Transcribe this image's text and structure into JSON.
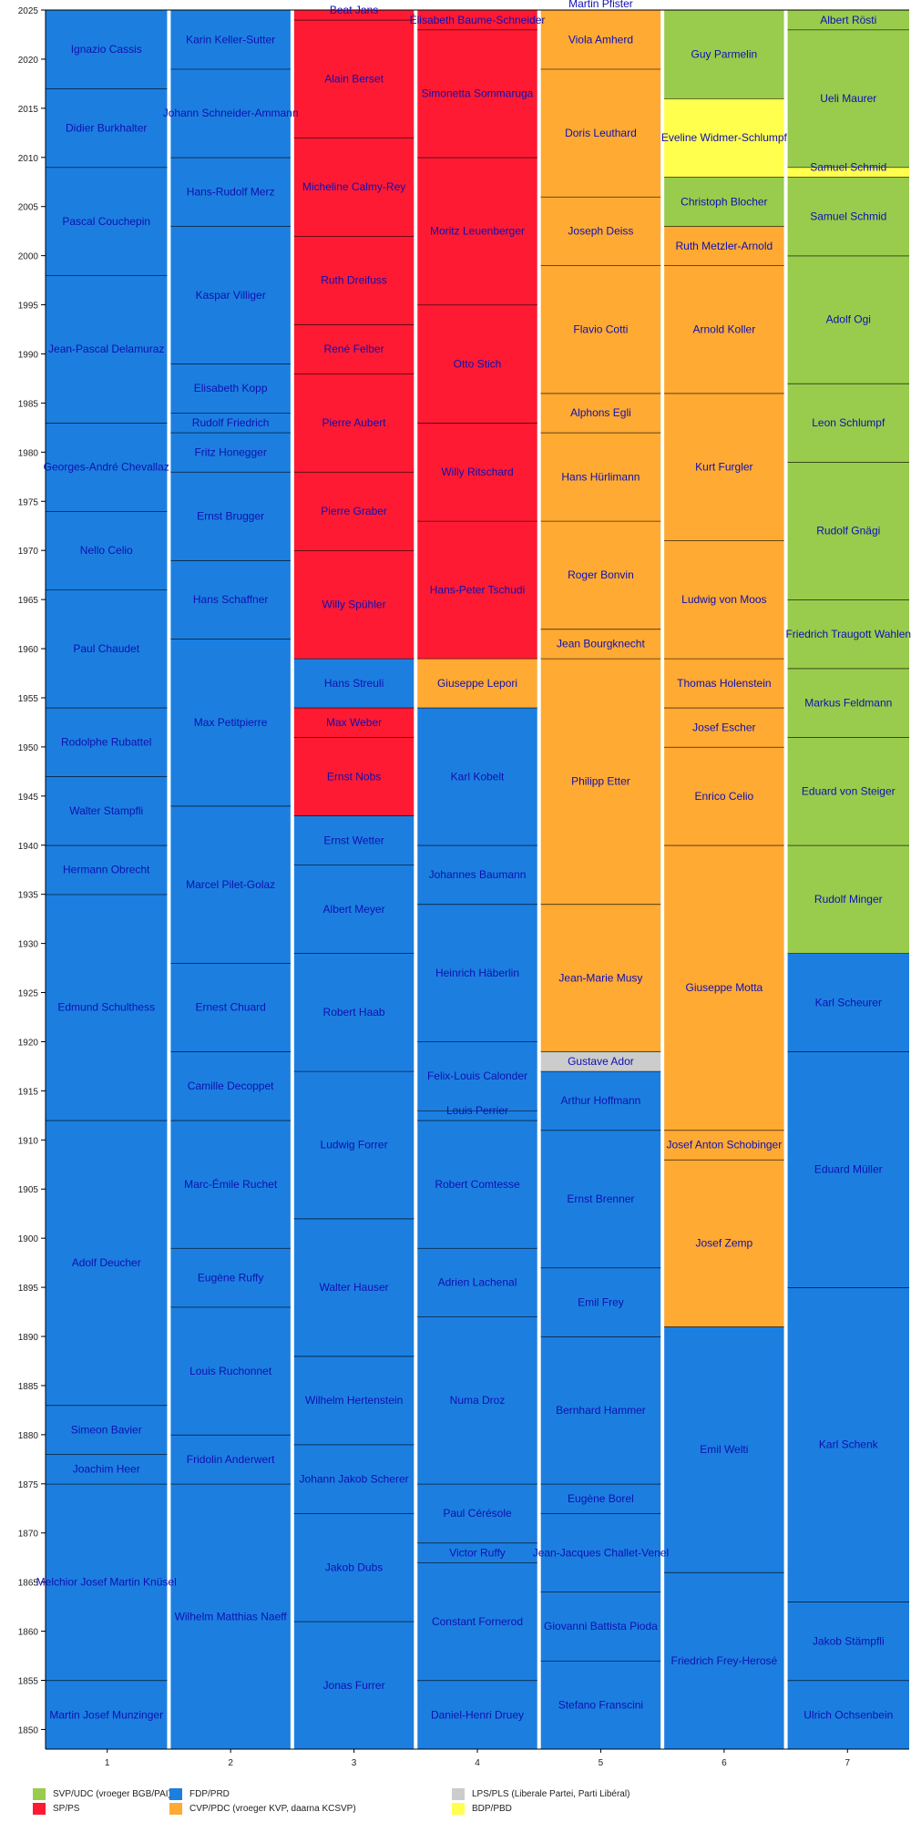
{
  "chart_data": {
    "type": "bar",
    "subtype": "stacked-timeline",
    "title": "",
    "xlabel": "",
    "ylabel": "",
    "ylim": [
      1848,
      2025
    ],
    "yticks": [
      1850,
      1855,
      1860,
      1865,
      1870,
      1875,
      1880,
      1885,
      1890,
      1895,
      1900,
      1905,
      1910,
      1915,
      1920,
      1925,
      1930,
      1935,
      1940,
      1945,
      1950,
      1955,
      1960,
      1965,
      1970,
      1975,
      1980,
      1985,
      1990,
      1995,
      2000,
      2005,
      2010,
      2015,
      2020,
      2025
    ],
    "categories": [
      "1",
      "2",
      "3",
      "4",
      "5",
      "6",
      "7"
    ],
    "parties": {
      "SVP": {
        "label": "SVP/UDC (vroeger BGB/PAI)",
        "color": "#99cc4c"
      },
      "SP": {
        "label": "SP/PS",
        "color": "#ff1a33"
      },
      "FDP": {
        "label": "FDP/PRD",
        "color": "#1c7fe0"
      },
      "CVP": {
        "label": "CVP/PDC (vroeger KVP, daarna KCSVP)",
        "color": "#ffaa33"
      },
      "LPS": {
        "label": "LPS/PLS (Liberale Partei, Parti Libéral)",
        "color": "#cccccc"
      },
      "BDP": {
        "label": "BDP/PBD",
        "color": "#ffff4d"
      }
    },
    "legend_order": [
      "SVP",
      "SP",
      "FDP",
      "CVP",
      "LPS",
      "BDP"
    ],
    "label_color": "#1010b0",
    "seats": [
      [
        {
          "name": "Martin Josef Munzinger",
          "from": 1848,
          "to": 1855,
          "party": "FDP"
        },
        {
          "name": "Melchior Josef Martin Knüsel",
          "from": 1855,
          "to": 1875,
          "party": "FDP"
        },
        {
          "name": "Joachim Heer",
          "from": 1875,
          "to": 1878,
          "party": "FDP"
        },
        {
          "name": "Simeon Bavier",
          "from": 1878,
          "to": 1883,
          "party": "FDP"
        },
        {
          "name": "Adolf Deucher",
          "from": 1883,
          "to": 1912,
          "party": "FDP"
        },
        {
          "name": "Edmund Schulthess",
          "from": 1912,
          "to": 1935,
          "party": "FDP"
        },
        {
          "name": "Hermann Obrecht",
          "from": 1935,
          "to": 1940,
          "party": "FDP"
        },
        {
          "name": "Walter Stampfli",
          "from": 1940,
          "to": 1947,
          "party": "FDP"
        },
        {
          "name": "Rodolphe Rubattel",
          "from": 1947,
          "to": 1954,
          "party": "FDP"
        },
        {
          "name": "Paul Chaudet",
          "from": 1954,
          "to": 1966,
          "party": "FDP"
        },
        {
          "name": "Nello Celio",
          "from": 1966,
          "to": 1974,
          "party": "FDP"
        },
        {
          "name": "Georges-André Chevallaz",
          "from": 1974,
          "to": 1983,
          "party": "FDP"
        },
        {
          "name": "Jean-Pascal Delamuraz",
          "from": 1983,
          "to": 1998,
          "party": "FDP"
        },
        {
          "name": "Pascal Couchepin",
          "from": 1998,
          "to": 2009,
          "party": "FDP"
        },
        {
          "name": "Didier Burkhalter",
          "from": 2009,
          "to": 2017,
          "party": "FDP"
        },
        {
          "name": "Ignazio Cassis",
          "from": 2017,
          "to": 2025,
          "party": "FDP"
        }
      ],
      [
        {
          "name": "Wilhelm Matthias Naeff",
          "from": 1848,
          "to": 1875,
          "party": "FDP"
        },
        {
          "name": "Fridolin Anderwert",
          "from": 1875,
          "to": 1880,
          "party": "FDP"
        },
        {
          "name": "Louis Ruchonnet",
          "from": 1880,
          "to": 1893,
          "party": "FDP"
        },
        {
          "name": "Eugène Ruffy",
          "from": 1893,
          "to": 1899,
          "party": "FDP"
        },
        {
          "name": "Marc-Émile Ruchet",
          "from": 1899,
          "to": 1912,
          "party": "FDP"
        },
        {
          "name": "Camille Decoppet",
          "from": 1912,
          "to": 1919,
          "party": "FDP"
        },
        {
          "name": "Ernest Chuard",
          "from": 1919,
          "to": 1928,
          "party": "FDP"
        },
        {
          "name": "Marcel Pilet-Golaz",
          "from": 1928,
          "to": 1944,
          "party": "FDP"
        },
        {
          "name": "Max Petitpierre",
          "from": 1944,
          "to": 1961,
          "party": "FDP"
        },
        {
          "name": "Hans Schaffner",
          "from": 1961,
          "to": 1969,
          "party": "FDP"
        },
        {
          "name": "Ernst Brugger",
          "from": 1969,
          "to": 1978,
          "party": "FDP"
        },
        {
          "name": "Fritz Honegger",
          "from": 1978,
          "to": 1982,
          "party": "FDP"
        },
        {
          "name": "Rudolf Friedrich",
          "from": 1982,
          "to": 1984,
          "party": "FDP"
        },
        {
          "name": "Elisabeth Kopp",
          "from": 1984,
          "to": 1989,
          "party": "FDP"
        },
        {
          "name": "Kaspar Villiger",
          "from": 1989,
          "to": 2003,
          "party": "FDP"
        },
        {
          "name": "Hans-Rudolf Merz",
          "from": 2003,
          "to": 2010,
          "party": "FDP"
        },
        {
          "name": "Johann Schneider-Ammann",
          "from": 2010,
          "to": 2019,
          "party": "FDP"
        },
        {
          "name": "Karin Keller-Sutter",
          "from": 2019,
          "to": 2025,
          "party": "FDP"
        }
      ],
      [
        {
          "name": "Jonas Furrer",
          "from": 1848,
          "to": 1861,
          "party": "FDP"
        },
        {
          "name": "Jakob Dubs",
          "from": 1861,
          "to": 1872,
          "party": "FDP"
        },
        {
          "name": "Johann Jakob Scherer",
          "from": 1872,
          "to": 1879,
          "party": "FDP"
        },
        {
          "name": "Wilhelm Hertenstein",
          "from": 1879,
          "to": 1888,
          "party": "FDP"
        },
        {
          "name": "Walter Hauser",
          "from": 1888,
          "to": 1902,
          "party": "FDP"
        },
        {
          "name": "Ludwig Forrer",
          "from": 1902,
          "to": 1917,
          "party": "FDP"
        },
        {
          "name": "Robert Haab",
          "from": 1917,
          "to": 1929,
          "party": "FDP"
        },
        {
          "name": "Albert Meyer",
          "from": 1929,
          "to": 1938,
          "party": "FDP"
        },
        {
          "name": "Ernst Wetter",
          "from": 1938,
          "to": 1943,
          "party": "FDP"
        },
        {
          "name": "Ernst Nobs",
          "from": 1943,
          "to": 1951,
          "party": "SP"
        },
        {
          "name": "Max Weber",
          "from": 1951,
          "to": 1954,
          "party": "SP"
        },
        {
          "name": "Hans Streuli",
          "from": 1954,
          "to": 1959,
          "party": "FDP"
        },
        {
          "name": "Willy Spühler",
          "from": 1959,
          "to": 1970,
          "party": "SP"
        },
        {
          "name": "Pierre Graber",
          "from": 1970,
          "to": 1978,
          "party": "SP"
        },
        {
          "name": "Pierre Aubert",
          "from": 1978,
          "to": 1988,
          "party": "SP"
        },
        {
          "name": "René Felber",
          "from": 1988,
          "to": 1993,
          "party": "SP"
        },
        {
          "name": "Ruth Dreifuss",
          "from": 1993,
          "to": 2002,
          "party": "SP"
        },
        {
          "name": "Micheline Calmy-Rey",
          "from": 2002,
          "to": 2012,
          "party": "SP"
        },
        {
          "name": "Alain Berset",
          "from": 2012,
          "to": 2024,
          "party": "SP"
        },
        {
          "name": "Beat Jans",
          "from": 2024,
          "to": 2025,
          "party": "SP"
        }
      ],
      [
        {
          "name": "Daniel-Henri Druey",
          "from": 1848,
          "to": 1855,
          "party": "FDP"
        },
        {
          "name": "Constant Fornerod",
          "from": 1855,
          "to": 1867,
          "party": "FDP"
        },
        {
          "name": "Victor Ruffy",
          "from": 1867,
          "to": 1869,
          "party": "FDP"
        },
        {
          "name": "Paul Cérésole",
          "from": 1869,
          "to": 1875,
          "party": "FDP"
        },
        {
          "name": "Numa Droz",
          "from": 1875,
          "to": 1892,
          "party": "FDP"
        },
        {
          "name": "Adrien Lachenal",
          "from": 1892,
          "to": 1899,
          "party": "FDP"
        },
        {
          "name": "Robert Comtesse",
          "from": 1899,
          "to": 1912,
          "party": "FDP"
        },
        {
          "name": "Louis Perrier",
          "from": 1912,
          "to": 1913,
          "party": "FDP"
        },
        {
          "name": "Felix-Louis Calonder",
          "from": 1913,
          "to": 1920,
          "party": "FDP"
        },
        {
          "name": "Heinrich Häberlin",
          "from": 1920,
          "to": 1934,
          "party": "FDP"
        },
        {
          "name": "Johannes Baumann",
          "from": 1934,
          "to": 1940,
          "party": "FDP"
        },
        {
          "name": "Karl Kobelt",
          "from": 1940,
          "to": 1954,
          "party": "FDP"
        },
        {
          "name": "Giuseppe Lepori",
          "from": 1954,
          "to": 1959,
          "party": "CVP"
        },
        {
          "name": "Hans-Peter Tschudi",
          "from": 1959,
          "to": 1973,
          "party": "SP"
        },
        {
          "name": "Willy Ritschard",
          "from": 1973,
          "to": 1983,
          "party": "SP"
        },
        {
          "name": "Otto Stich",
          "from": 1983,
          "to": 1995,
          "party": "SP"
        },
        {
          "name": "Moritz Leuenberger",
          "from": 1995,
          "to": 2010,
          "party": "SP"
        },
        {
          "name": "Simonetta Sommaruga",
          "from": 2010,
          "to": 2023,
          "party": "SP"
        },
        {
          "name": "Élisabeth Baume-Schneider",
          "from": 2023,
          "to": 2025,
          "party": "SP"
        }
      ],
      [
        {
          "name": "Stefano Franscini",
          "from": 1848,
          "to": 1857,
          "party": "FDP"
        },
        {
          "name": "Giovanni Battista Pioda",
          "from": 1857,
          "to": 1864,
          "party": "FDP"
        },
        {
          "name": "Jean-Jacques Challet-Venel",
          "from": 1864,
          "to": 1872,
          "party": "FDP"
        },
        {
          "name": "Eugène Borel",
          "from": 1872,
          "to": 1875,
          "party": "FDP"
        },
        {
          "name": "Bernhard Hammer",
          "from": 1875,
          "to": 1890,
          "party": "FDP"
        },
        {
          "name": "Emil Frey",
          "from": 1890,
          "to": 1897,
          "party": "FDP"
        },
        {
          "name": "Ernst Brenner",
          "from": 1897,
          "to": 1911,
          "party": "FDP"
        },
        {
          "name": "Arthur Hoffmann",
          "from": 1911,
          "to": 1917,
          "party": "FDP"
        },
        {
          "name": "Gustave Ador",
          "from": 1917,
          "to": 1919,
          "party": "LPS"
        },
        {
          "name": "Jean-Marie Musy",
          "from": 1919,
          "to": 1934,
          "party": "CVP"
        },
        {
          "name": "Philipp Etter",
          "from": 1934,
          "to": 1959,
          "party": "CVP"
        },
        {
          "name": "Jean Bourgknecht",
          "from": 1959,
          "to": 1962,
          "party": "CVP"
        },
        {
          "name": "Roger Bonvin",
          "from": 1962,
          "to": 1973,
          "party": "CVP"
        },
        {
          "name": "Hans Hürlimann",
          "from": 1973,
          "to": 1982,
          "party": "CVP"
        },
        {
          "name": "Alphons Egli",
          "from": 1982,
          "to": 1986,
          "party": "CVP"
        },
        {
          "name": "Flavio Cotti",
          "from": 1986,
          "to": 1999,
          "party": "CVP"
        },
        {
          "name": "Joseph Deiss",
          "from": 1999,
          "to": 2006,
          "party": "CVP"
        },
        {
          "name": "Doris Leuthard",
          "from": 2006,
          "to": 2019,
          "party": "CVP"
        },
        {
          "name": "Viola Amherd",
          "from": 2019,
          "to": 2025,
          "party": "CVP"
        },
        {
          "name": "Martin Pfister",
          "from": 2025,
          "to": 2025,
          "party": "CVP"
        }
      ],
      [
        {
          "name": "Friedrich Frey-Herosé",
          "from": 1848,
          "to": 1866,
          "party": "FDP"
        },
        {
          "name": "Emil Welti",
          "from": 1866,
          "to": 1891,
          "party": "FDP"
        },
        {
          "name": "Josef Zemp",
          "from": 1891,
          "to": 1908,
          "party": "CVP"
        },
        {
          "name": "Josef Anton Schobinger",
          "from": 1908,
          "to": 1911,
          "party": "CVP"
        },
        {
          "name": "Giuseppe Motta",
          "from": 1911,
          "to": 1940,
          "party": "CVP"
        },
        {
          "name": "Enrico Celio",
          "from": 1940,
          "to": 1950,
          "party": "CVP"
        },
        {
          "name": "Josef Escher",
          "from": 1950,
          "to": 1954,
          "party": "CVP"
        },
        {
          "name": "Thomas Holenstein",
          "from": 1954,
          "to": 1959,
          "party": "CVP"
        },
        {
          "name": "Ludwig von Moos",
          "from": 1959,
          "to": 1971,
          "party": "CVP"
        },
        {
          "name": "Kurt Furgler",
          "from": 1971,
          "to": 1986,
          "party": "CVP"
        },
        {
          "name": "Arnold Koller",
          "from": 1986,
          "to": 1999,
          "party": "CVP"
        },
        {
          "name": "Ruth Metzler-Arnold",
          "from": 1999,
          "to": 2003,
          "party": "CVP"
        },
        {
          "name": "Christoph Blocher",
          "from": 2003,
          "to": 2008,
          "party": "SVP"
        },
        {
          "name": "Eveline Widmer-Schlumpf",
          "from": 2008,
          "to": 2016,
          "party": "BDP"
        },
        {
          "name": "Guy Parmelin",
          "from": 2016,
          "to": 2025,
          "party": "SVP"
        }
      ],
      [
        {
          "name": "Ulrich Ochsenbein",
          "from": 1848,
          "to": 1855,
          "party": "FDP"
        },
        {
          "name": "Jakob Stämpfli",
          "from": 1855,
          "to": 1863,
          "party": "FDP"
        },
        {
          "name": "Karl Schenk",
          "from": 1863,
          "to": 1895,
          "party": "FDP"
        },
        {
          "name": "Eduard Müller",
          "from": 1895,
          "to": 1919,
          "party": "FDP"
        },
        {
          "name": "Karl Scheurer",
          "from": 1919,
          "to": 1929,
          "party": "FDP"
        },
        {
          "name": "Rudolf Minger",
          "from": 1929,
          "to": 1940,
          "party": "SVP"
        },
        {
          "name": "Eduard von Steiger",
          "from": 1940,
          "to": 1951,
          "party": "SVP"
        },
        {
          "name": "Markus Feldmann",
          "from": 1951,
          "to": 1958,
          "party": "SVP"
        },
        {
          "name": "Friedrich Traugott Wahlen",
          "from": 1958,
          "to": 1965,
          "party": "SVP"
        },
        {
          "name": "Rudolf Gnägi",
          "from": 1965,
          "to": 1979,
          "party": "SVP"
        },
        {
          "name": "Leon Schlumpf",
          "from": 1979,
          "to": 1987,
          "party": "SVP"
        },
        {
          "name": "Adolf Ogi",
          "from": 1987,
          "to": 2000,
          "party": "SVP"
        },
        {
          "name": "Samuel Schmid",
          "from": 2000,
          "to": 2008,
          "party": "SVP"
        },
        {
          "name": "Samuel Schmid",
          "from": 2008,
          "to": 2009,
          "party": "BDP"
        },
        {
          "name": "Ueli Maurer",
          "from": 2009,
          "to": 2023,
          "party": "SVP"
        },
        {
          "name": "Albert Rösti",
          "from": 2023,
          "to": 2025,
          "party": "SVP"
        }
      ]
    ]
  }
}
